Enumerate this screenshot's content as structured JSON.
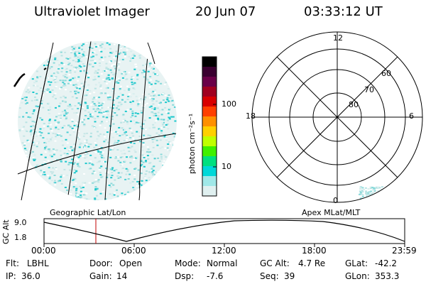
{
  "header": {
    "instrument": "Ultraviolet Imager",
    "date": "20 Jun 07",
    "time": "03:33:12 UT"
  },
  "left_panel": {
    "caption": "Geographic Lat/Lon"
  },
  "colorbar": {
    "unit_label": "photon cm⁻²s⁻¹",
    "ticks": [
      "100",
      "10"
    ],
    "colors": [
      "#000000",
      "#3a0030",
      "#6a0048",
      "#a00020",
      "#d80000",
      "#ff4000",
      "#ff9000",
      "#ffd000",
      "#c0ff00",
      "#40f000",
      "#00e080",
      "#00d8d8",
      "#a0e8e8",
      "#e0f0f0"
    ]
  },
  "polar_plot": {
    "caption": "Apex MLat/MLT",
    "mlt_labels": [
      "12",
      "18",
      "6",
      "0"
    ],
    "lat_labels": [
      "60",
      "70",
      "80"
    ]
  },
  "altitude_plot": {
    "y_label": "GC Alt",
    "y_ticks": [
      "9.0",
      "1.8"
    ],
    "x_ticks": [
      "00:00",
      "06:00",
      "12:00",
      "18:00",
      "23:59"
    ],
    "marker_color": "#c00000"
  },
  "footer": {
    "row1": [
      {
        "label": "Flt:",
        "value": "LBHL"
      },
      {
        "label": "Door:",
        "value": "Open"
      },
      {
        "label": "Mode:",
        "value": "Normal"
      },
      {
        "label": "GC Alt:",
        "value": "4.7 Re"
      },
      {
        "label": "GLat:",
        "value": "-42.2"
      }
    ],
    "row2": [
      {
        "label": "IP:",
        "value": "36.0"
      },
      {
        "label": "Gain:",
        "value": "14"
      },
      {
        "label": "Dsp:",
        "value": "-7.6"
      },
      {
        "label": "Seq:",
        "value": "39"
      },
      {
        "label": "GLon:",
        "value": "353.3"
      }
    ]
  }
}
